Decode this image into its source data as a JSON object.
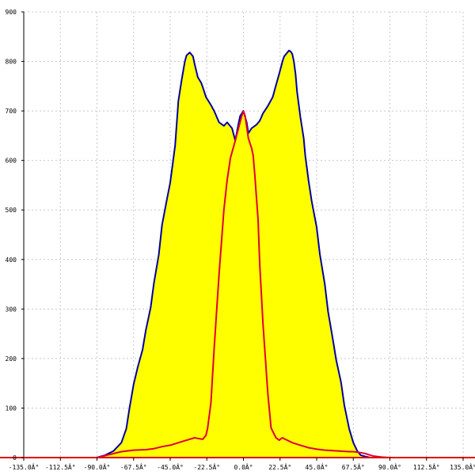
{
  "chart_data": {
    "type": "area",
    "xlim": [
      -135,
      135
    ],
    "ylim": [
      0,
      900
    ],
    "grid": true,
    "x_ticks": [
      -135,
      -112.5,
      -90,
      -67.5,
      -45,
      -22.5,
      0,
      22.5,
      45,
      67.5,
      90,
      112.5,
      135
    ],
    "x_tick_labels": [
      "-135.0Â°",
      "-112.5Â°",
      "-90.0Â°",
      "-67.5Â°",
      "-45.0Â°",
      "-22.5Â°",
      "0.0Â°",
      "22.5Â°",
      "45.0Â°",
      "67.5Â°",
      "90.0Â°",
      "112.5Â°",
      "135.0Â°"
    ],
    "y_ticks": [
      0,
      100,
      200,
      300,
      400,
      500,
      600,
      700,
      800,
      900
    ],
    "y_tick_labels": [
      "0",
      "100",
      "200",
      "300",
      "400",
      "500",
      "600",
      "700",
      "800",
      "900"
    ],
    "series": [
      {
        "color": "#0000a0",
        "fill": "#ffff00",
        "x": [
          -135,
          -90,
          -85,
          -80,
          -75,
          -72,
          -70,
          -67.5,
          -65,
          -62,
          -60,
          -57,
          -55,
          -52,
          -50,
          -47,
          -45,
          -42,
          -40,
          -38,
          -36,
          -35,
          -33,
          -31,
          -30,
          -28,
          -26,
          -25,
          -23,
          -20,
          -18,
          -15,
          -12,
          -10,
          -7,
          -5,
          -3,
          -2,
          0,
          2,
          3,
          5,
          8,
          10,
          12,
          15,
          18,
          20,
          22,
          24,
          25,
          27,
          28,
          29,
          30,
          31,
          32,
          33,
          35,
          37,
          38,
          40,
          42,
          45,
          47,
          50,
          52,
          55,
          57,
          60,
          62,
          65,
          67.5,
          70,
          72,
          75,
          78,
          80,
          85,
          90,
          135
        ],
        "y": [
          0,
          0,
          5,
          13,
          30,
          58,
          100,
          148,
          182,
          218,
          257,
          303,
          352,
          410,
          470,
          522,
          555,
          630,
          720,
          762,
          800,
          812,
          818,
          810,
          795,
          768,
          757,
          748,
          728,
          712,
          700,
          677,
          670,
          677,
          665,
          640,
          675,
          690,
          700,
          677,
          655,
          665,
          672,
          680,
          695,
          710,
          728,
          752,
          775,
          800,
          810,
          818,
          822,
          820,
          815,
          800,
          775,
          738,
          688,
          645,
          610,
          560,
          517,
          465,
          410,
          350,
          295,
          237,
          197,
          152,
          106,
          58,
          30,
          13,
          5,
          2,
          0,
          0,
          0,
          0,
          0
        ]
      },
      {
        "color": "#e00030",
        "x": [
          -135,
          -90,
          -87,
          -85,
          -80,
          -75,
          -70,
          -67.5,
          -60,
          -55,
          -50,
          -45,
          -40,
          -35,
          -30,
          -27,
          -25,
          -23,
          -22,
          -20,
          -18,
          -15,
          -12,
          -10,
          -8,
          -5,
          -3,
          -1,
          0,
          1,
          2,
          3,
          4,
          5,
          6,
          7,
          9,
          10,
          12,
          15,
          17,
          20,
          22,
          23,
          24,
          25,
          27,
          30,
          35,
          40,
          45,
          50,
          55,
          60,
          65,
          67.5,
          70,
          72,
          75,
          78,
          80,
          85,
          90,
          135
        ],
        "y": [
          0,
          0,
          2,
          4,
          8,
          12,
          14,
          15,
          16,
          18,
          22,
          25,
          30,
          35,
          40,
          38,
          37,
          45,
          60,
          110,
          220,
          370,
          500,
          560,
          605,
          640,
          665,
          690,
          700,
          690,
          668,
          645,
          635,
          625,
          610,
          570,
          480,
          390,
          270,
          130,
          60,
          40,
          35,
          38,
          40,
          38,
          35,
          30,
          25,
          20,
          17,
          15,
          14,
          13,
          12,
          12,
          11,
          10,
          8,
          5,
          3,
          1,
          0,
          0
        ]
      }
    ]
  }
}
